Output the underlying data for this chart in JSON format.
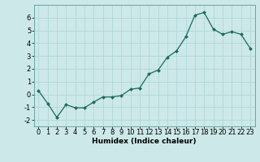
{
  "x": [
    0,
    1,
    2,
    3,
    4,
    5,
    6,
    7,
    8,
    9,
    10,
    11,
    12,
    13,
    14,
    15,
    16,
    17,
    18,
    19,
    20,
    21,
    22,
    23
  ],
  "y": [
    0.3,
    -0.7,
    -1.8,
    -0.8,
    -1.05,
    -1.05,
    -0.6,
    -0.2,
    -0.2,
    -0.1,
    0.4,
    0.5,
    1.6,
    1.9,
    2.9,
    3.4,
    4.5,
    6.2,
    6.4,
    5.1,
    4.7,
    4.9,
    4.7,
    3.6
  ],
  "line_color": "#1a6b5a",
  "marker_color": "#1a6b5a",
  "bg_color": "#cce8e8",
  "grid_color": "#b0d8d8",
  "xlabel": "Humidex (Indice chaleur)",
  "xlim": [
    -0.5,
    23.5
  ],
  "ylim": [
    -2.5,
    7.0
  ],
  "yticks": [
    -2,
    -1,
    0,
    1,
    2,
    3,
    4,
    5,
    6
  ],
  "xticks": [
    0,
    1,
    2,
    3,
    4,
    5,
    6,
    7,
    8,
    9,
    10,
    11,
    12,
    13,
    14,
    15,
    16,
    17,
    18,
    19,
    20,
    21,
    22,
    23
  ],
  "label_fontsize": 6.5,
  "tick_fontsize": 6.0
}
